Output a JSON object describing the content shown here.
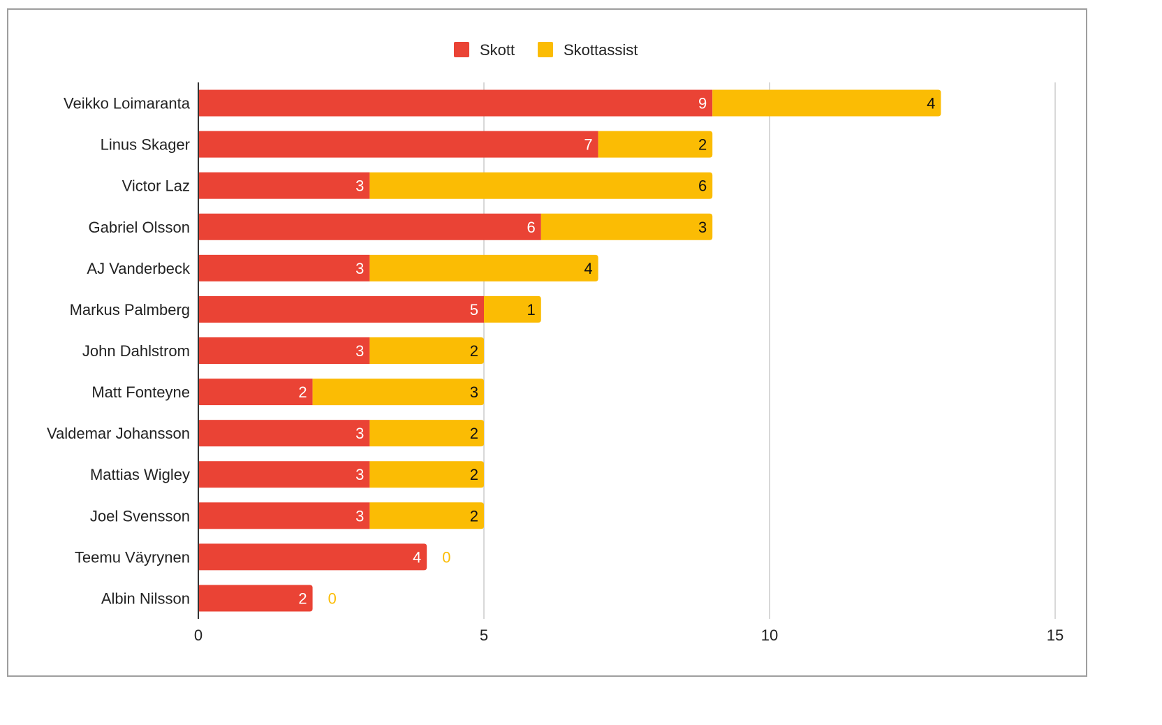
{
  "chart_data": {
    "type": "bar",
    "orientation": "horizontal",
    "stacked": true,
    "categories": [
      "Veikko Loimaranta",
      "Linus Skager",
      "Victor Laz",
      "Gabriel Olsson",
      "AJ Vanderbeck",
      "Markus Palmberg",
      "John Dahlstrom",
      "Matt Fonteyne",
      "Valdemar Johansson",
      "Mattias Wigley",
      "Joel Svensson",
      "Teemu Väyrynen",
      "Albin Nilsson"
    ],
    "series": [
      {
        "name": "Skott",
        "color": "#ea4335",
        "values": [
          9,
          7,
          3,
          6,
          3,
          5,
          3,
          2,
          3,
          3,
          3,
          4,
          2
        ]
      },
      {
        "name": "Skottassist",
        "color": "#fbbc04",
        "values": [
          4,
          2,
          6,
          3,
          4,
          1,
          2,
          3,
          2,
          2,
          2,
          0,
          0
        ]
      }
    ],
    "xlim": [
      0,
      15
    ],
    "xticks": [
      "0",
      "5",
      "10",
      "15"
    ],
    "title": "",
    "xlabel": "",
    "ylabel": "",
    "legend_position": "top-center",
    "grid": true
  }
}
